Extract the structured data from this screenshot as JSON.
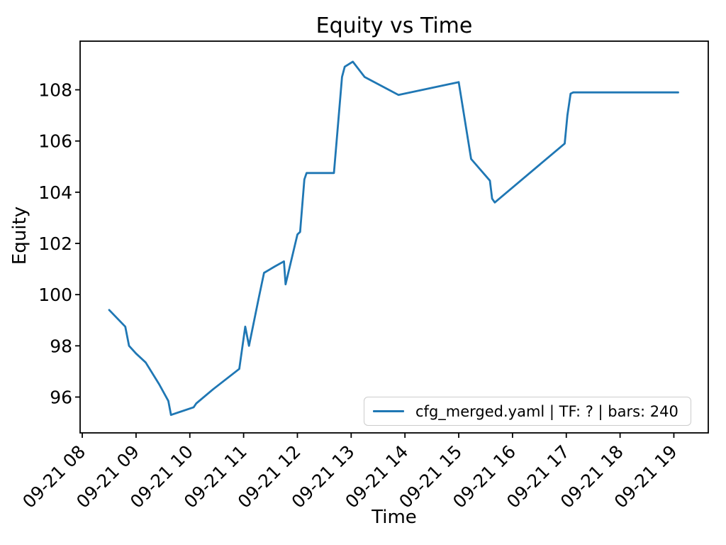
{
  "figure": {
    "background": "#ffffff",
    "text_color": "#000000",
    "spine_color": "#000000"
  },
  "chart_data": {
    "type": "line",
    "title": "Equity vs Time",
    "xlabel": "Time",
    "ylabel": "Equity",
    "x_date": "09-21",
    "grid": false,
    "xlim_hours": [
      7.96,
      19.64
    ],
    "ylim": [
      94.6,
      109.9
    ],
    "xtick_hours": [
      8,
      9,
      10,
      11,
      12,
      13,
      14,
      15,
      16,
      17,
      18,
      19
    ],
    "xtick_labels": [
      "09-21 08",
      "09-21 09",
      "09-21 10",
      "09-21 11",
      "09-21 12",
      "09-21 13",
      "09-21 14",
      "09-21 15",
      "09-21 16",
      "09-21 17",
      "09-21 18",
      "09-21 19"
    ],
    "ytick_values": [
      96,
      98,
      100,
      102,
      104,
      106,
      108
    ],
    "legend": {
      "position": "lower right",
      "entries": [
        {
          "label": "cfg_merged.yaml | TF: ? | bars: 240",
          "color": "#1f77b4"
        }
      ]
    },
    "series": [
      {
        "name": "cfg_merged.yaml | TF: ? | bars: 240",
        "color": "#1f77b4",
        "linewidth": 2.8,
        "times": [
          "08:30",
          "08:48",
          "08:52",
          "09:00",
          "09:11",
          "09:26",
          "09:36",
          "09:39",
          "10:04",
          "10:07",
          "10:26",
          "10:55",
          "11:02",
          "11:06",
          "11:17",
          "11:23",
          "11:35",
          "11:45",
          "11:47",
          "12:00",
          "12:03",
          "12:08",
          "12:10",
          "12:41",
          "12:44",
          "12:50",
          "12:53",
          "13:02",
          "13:15",
          "13:53",
          "15:00",
          "15:14",
          "15:35",
          "15:37",
          "15:40",
          "16:58",
          "17:01",
          "17:05",
          "17:08",
          "19:05"
        ],
        "x_hours": [
          8.5,
          8.8,
          8.87,
          9.0,
          9.18,
          9.43,
          9.6,
          9.65,
          10.07,
          10.12,
          10.43,
          10.92,
          11.03,
          11.1,
          11.28,
          11.38,
          11.58,
          11.75,
          11.78,
          12.0,
          12.05,
          12.13,
          12.17,
          12.68,
          12.73,
          12.83,
          12.88,
          13.03,
          13.25,
          13.88,
          15.0,
          15.23,
          15.58,
          15.62,
          15.67,
          16.97,
          17.02,
          17.08,
          17.13,
          19.08
        ],
        "equity": [
          99.4,
          98.75,
          98.0,
          97.7,
          97.35,
          96.5,
          95.85,
          95.3,
          95.6,
          95.75,
          96.3,
          97.1,
          98.75,
          98.0,
          99.85,
          100.85,
          101.1,
          101.3,
          100.4,
          102.35,
          102.45,
          104.5,
          104.75,
          104.75,
          106.0,
          108.5,
          108.9,
          109.1,
          108.5,
          107.8,
          108.3,
          105.3,
          104.45,
          103.75,
          103.6,
          105.9,
          107.0,
          107.85,
          107.9,
          107.9
        ]
      }
    ]
  }
}
